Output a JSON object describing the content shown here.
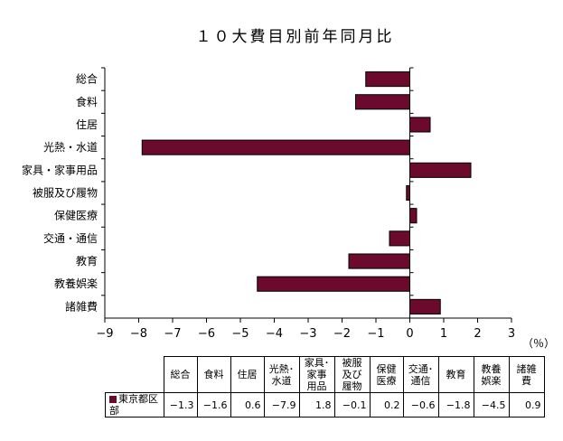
{
  "chart_data": {
    "type": "bar",
    "orientation": "horizontal",
    "title": "１０大費目別前年同月比",
    "unit_label": "（％）",
    "categories": [
      "総合",
      "食料",
      "住居",
      "光熱・水道",
      "家具・家事用品",
      "被服及び履物",
      "保健医療",
      "交通・通信",
      "教育",
      "教養娯楽",
      "諸雑費"
    ],
    "table_headers": [
      [
        "総合"
      ],
      [
        "食料"
      ],
      [
        "住居"
      ],
      [
        "光熱･",
        "水道"
      ],
      [
        "家具･",
        "家事",
        "用品"
      ],
      [
        "被服",
        "及び",
        "履物"
      ],
      [
        "保健",
        "医療"
      ],
      [
        "交通･",
        "通信"
      ],
      [
        "教育"
      ],
      [
        "教養",
        "娯楽"
      ],
      [
        "諸雑",
        "費"
      ]
    ],
    "series": [
      {
        "name": "東京都区部",
        "color": "#6b0a2d",
        "values": [
          -1.3,
          -1.6,
          0.6,
          -7.9,
          1.8,
          -0.1,
          0.2,
          -0.6,
          -1.8,
          -4.5,
          0.9
        ],
        "display_values": [
          "−1.3",
          "−1.6",
          "0.6",
          "−7.9",
          "1.8",
          "−0.1",
          "0.2",
          "−0.6",
          "−1.8",
          "−4.5",
          "0.9"
        ]
      }
    ],
    "xlim": [
      -9,
      3
    ],
    "xticks": [
      -9,
      -8,
      -7,
      -6,
      -5,
      -4,
      -3,
      -2,
      -1,
      0,
      1,
      2,
      3
    ],
    "grid": false,
    "legend": "table"
  }
}
